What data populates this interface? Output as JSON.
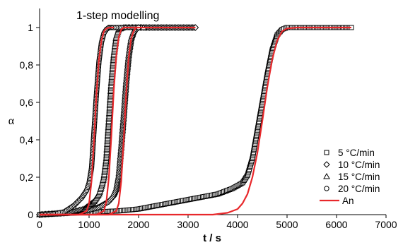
{
  "chart_data": {
    "type": "scatter",
    "title": "1-step modelling",
    "xlabel": "t / s",
    "ylabel": "α",
    "xlim": [
      0,
      7000
    ],
    "ylim": [
      0,
      1
    ],
    "x_ticks": [
      0,
      1000,
      2000,
      3000,
      4000,
      5000,
      6000,
      7000
    ],
    "y_ticks": [
      "0",
      "0,2",
      "0,4",
      "0,6",
      "0,8",
      "1"
    ],
    "y_tick_values": [
      0,
      0.2,
      0.4,
      0.6,
      0.8,
      1
    ],
    "grid": false,
    "legend_position": "bottom-right",
    "series": [
      {
        "name": "5 °C/min",
        "marker": "square",
        "x": [
          0,
          400,
          800,
          1200,
          1600,
          2000,
          2400,
          2800,
          3200,
          3600,
          3900,
          4100,
          4200,
          4300,
          4400,
          4500,
          4600,
          4700,
          4800,
          4900,
          5000,
          5500,
          6000,
          6300
        ],
        "y": [
          0.0,
          0.005,
          0.01,
          0.015,
          0.02,
          0.03,
          0.05,
          0.07,
          0.09,
          0.11,
          0.14,
          0.17,
          0.21,
          0.3,
          0.45,
          0.6,
          0.75,
          0.88,
          0.96,
          0.99,
          1.0,
          1.0,
          1.0,
          1.0
        ]
      },
      {
        "name": "10 °C/min",
        "marker": "diamond",
        "x": [
          0,
          300,
          600,
          900,
          1200,
          1400,
          1500,
          1550,
          1600,
          1650,
          1700,
          1750,
          1800,
          1850,
          1900,
          1950,
          2000,
          2100,
          2500,
          3000,
          3150
        ],
        "y": [
          0.0,
          0.005,
          0.01,
          0.02,
          0.04,
          0.07,
          0.1,
          0.13,
          0.2,
          0.35,
          0.52,
          0.7,
          0.84,
          0.93,
          0.97,
          0.99,
          1.0,
          1.0,
          1.0,
          1.0,
          1.0
        ]
      },
      {
        "name": "15 °C/min",
        "marker": "triangle",
        "x": [
          0,
          300,
          600,
          900,
          1100,
          1200,
          1250,
          1300,
          1350,
          1400,
          1450,
          1500,
          1550,
          1600,
          1700,
          2000,
          2100
        ],
        "y": [
          0.0,
          0.005,
          0.01,
          0.03,
          0.07,
          0.11,
          0.15,
          0.2,
          0.3,
          0.5,
          0.7,
          0.85,
          0.95,
          0.99,
          1.0,
          1.0,
          1.0
        ],
        "note": ""
      },
      {
        "name": "20 °C/min",
        "marker": "circle",
        "x": [
          0,
          300,
          500,
          700,
          850,
          950,
          1000,
          1050,
          1100,
          1150,
          1200,
          1250,
          1300,
          1350,
          1400,
          1450,
          1500,
          1700,
          2000
        ],
        "y": [
          0.0,
          0.005,
          0.015,
          0.05,
          0.09,
          0.13,
          0.17,
          0.25,
          0.45,
          0.65,
          0.82,
          0.92,
          0.97,
          0.99,
          1.0,
          1.0,
          1.0,
          1.0,
          1.0
        ]
      },
      {
        "name": "An",
        "marker": "line",
        "color": "#e8282b",
        "curves": [
          {
            "x": [
              0,
              800,
              950,
              1000,
              1050,
              1100,
              1150,
              1200,
              1250,
              1300,
              1350,
              1400,
              1500
            ],
            "y": [
              0.0,
              0.0,
              0.02,
              0.06,
              0.18,
              0.4,
              0.65,
              0.83,
              0.93,
              0.98,
              0.995,
              1.0,
              1.0
            ]
          },
          {
            "x": [
              0,
              1150,
              1300,
              1350,
              1400,
              1450,
              1500,
              1550,
              1600,
              1650,
              1700,
              1800,
              2000
            ],
            "y": [
              0.0,
              0.0,
              0.02,
              0.07,
              0.2,
              0.42,
              0.67,
              0.85,
              0.95,
              0.99,
              1.0,
              1.0,
              1.0
            ]
          },
          {
            "x": [
              0,
              1400,
              1550,
              1600,
              1650,
              1700,
              1750,
              1800,
              1850,
              1900,
              1950,
              2100,
              3150
            ],
            "y": [
              0.0,
              0.0,
              0.02,
              0.06,
              0.18,
              0.4,
              0.65,
              0.84,
              0.94,
              0.98,
              1.0,
              1.0,
              1.0
            ]
          },
          {
            "x": [
              0,
              3500,
              3800,
              4000,
              4100,
              4200,
              4300,
              4400,
              4500,
              4600,
              4700,
              4800,
              4900,
              5000,
              5200,
              6300
            ],
            "y": [
              0.0,
              0.0,
              0.01,
              0.03,
              0.06,
              0.11,
              0.2,
              0.33,
              0.5,
              0.68,
              0.83,
              0.93,
              0.98,
              0.995,
              1.0,
              1.0
            ]
          }
        ]
      }
    ]
  }
}
